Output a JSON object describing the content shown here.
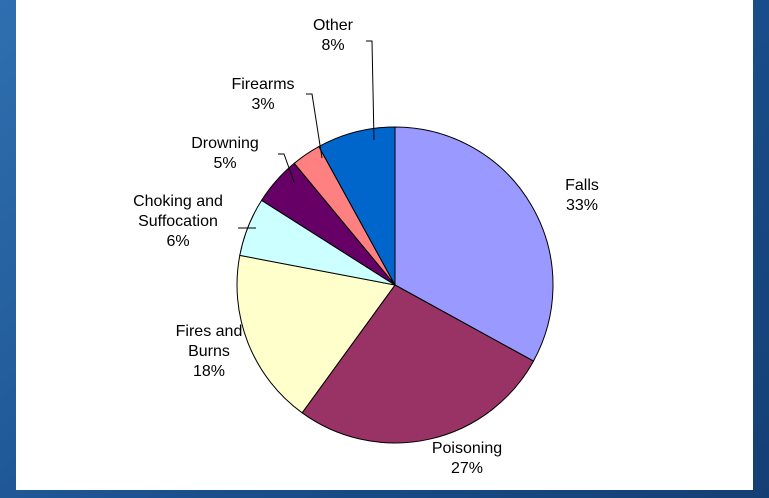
{
  "chart_data": {
    "type": "pie",
    "start_angle_deg": 0,
    "direction": "clockwise",
    "slices": [
      {
        "label_lines": [
          "Falls"
        ],
        "value_label": "33%",
        "value": 33,
        "color": "#9999ff"
      },
      {
        "label_lines": [
          "Poisoning"
        ],
        "value_label": "27%",
        "value": 27,
        "color": "#993366"
      },
      {
        "label_lines": [
          "Fires and",
          "Burns"
        ],
        "value_label": "18%",
        "value": 18,
        "color": "#ffffcc"
      },
      {
        "label_lines": [
          "Choking and",
          "Suffocation"
        ],
        "value_label": "6%",
        "value": 6,
        "color": "#ccffff"
      },
      {
        "label_lines": [
          "Drowning"
        ],
        "value_label": "5%",
        "value": 5,
        "color": "#660066"
      },
      {
        "label_lines": [
          "Firearms"
        ],
        "value_label": "3%",
        "value": 3,
        "color": "#ff8080"
      },
      {
        "label_lines": [
          "Other"
        ],
        "value_label": "8%",
        "value": 8,
        "color": "#0066cc"
      }
    ],
    "legend": "none"
  }
}
